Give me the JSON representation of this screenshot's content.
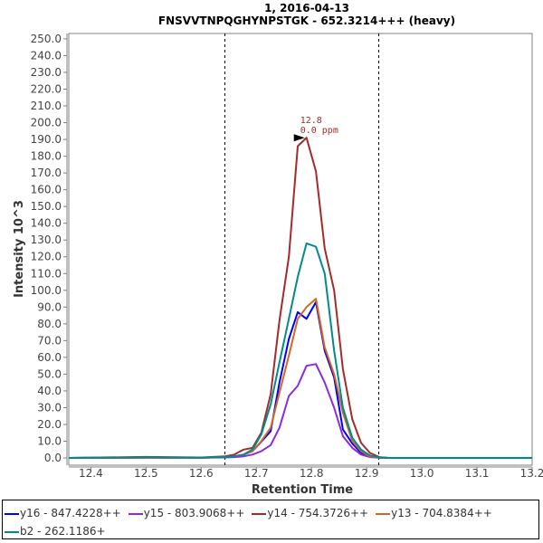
{
  "chart_data": {
    "type": "line",
    "title": "1, 2016-04-13",
    "subtitle": "FNSVVTNPQGHYNPSTGK - 652.3214+++ (heavy)",
    "xlabel": "Retention Time",
    "ylabel": "Intensity 10^3",
    "xlim": [
      12.36,
      13.2
    ],
    "ylim": [
      -4.3,
      253.2
    ],
    "x_ticks": [
      "12.4",
      "12.5",
      "12.6",
      "12.7",
      "12.8",
      "12.9",
      "13.0",
      "13.1",
      "13.2"
    ],
    "y_ticks": [
      "0.0",
      "10.0",
      "20.0",
      "30.0",
      "40.0",
      "50.0",
      "60.0",
      "70.0",
      "80.0",
      "90.0",
      "100.0",
      "110.0",
      "120.0",
      "130.0",
      "140.0",
      "150.0",
      "160.0",
      "170.0",
      "180.0",
      "190.0",
      "200.0",
      "210.0",
      "220.0",
      "230.0",
      "240.0",
      "250.0"
    ],
    "grid": false,
    "legend_position": "bottom",
    "boundaries": [
      12.643,
      12.922
    ],
    "peak_annotation": {
      "x": 12.791,
      "y": 191,
      "rt_label": "12.8",
      "ppm_label": "0.0 ppm"
    },
    "x": [
      12.36,
      12.47,
      12.5,
      12.6,
      12.644,
      12.66,
      12.677,
      12.693,
      12.709,
      12.726,
      12.742,
      12.759,
      12.775,
      12.791,
      12.808,
      12.824,
      12.841,
      12.857,
      12.874,
      12.89,
      12.906,
      12.923,
      12.94,
      13.2
    ],
    "series": [
      {
        "name": "y16 - 847.4228++",
        "color": "#0000ff",
        "values": [
          0,
          0.3,
          0.3,
          0.2,
          0.5,
          1,
          2,
          4,
          9.7,
          16,
          45,
          71,
          87,
          83,
          93,
          64,
          48,
          17,
          8.6,
          3,
          1,
          0.2,
          0,
          0
        ]
      },
      {
        "name": "y15 - 803.9068++",
        "color": "#8a2be2",
        "values": [
          0,
          0.1,
          0.1,
          0.1,
          0.3,
          0.5,
          1,
          2,
          4,
          7.7,
          18,
          37,
          43,
          55,
          56,
          45,
          30,
          13,
          6,
          2,
          0.5,
          0.1,
          0,
          0
        ]
      },
      {
        "name": "y14 - 754.3726++",
        "color": "#a52a2a",
        "values": [
          0,
          0.5,
          0.6,
          0.3,
          1,
          2,
          5,
          6,
          15,
          38,
          82,
          120,
          186,
          191,
          171,
          125,
          100,
          53,
          23,
          9,
          3,
          0.5,
          0,
          0
        ]
      },
      {
        "name": "y13 - 704.8384++",
        "color": "#d2691e",
        "values": [
          0,
          0.2,
          0.2,
          0.1,
          0.5,
          1,
          2,
          4,
          10,
          18,
          39,
          61,
          83,
          90,
          95,
          66,
          50,
          27,
          10,
          4,
          1,
          0.2,
          0,
          0
        ]
      },
      {
        "name": "b2 - 262.1186+",
        "color": "#008b8b",
        "values": [
          0,
          0.2,
          0.3,
          0.2,
          0.5,
          1,
          2,
          5,
          14,
          32,
          57,
          83,
          108,
          128,
          126,
          110,
          64,
          30,
          12,
          5,
          1.5,
          0.3,
          0,
          0
        ]
      }
    ]
  }
}
